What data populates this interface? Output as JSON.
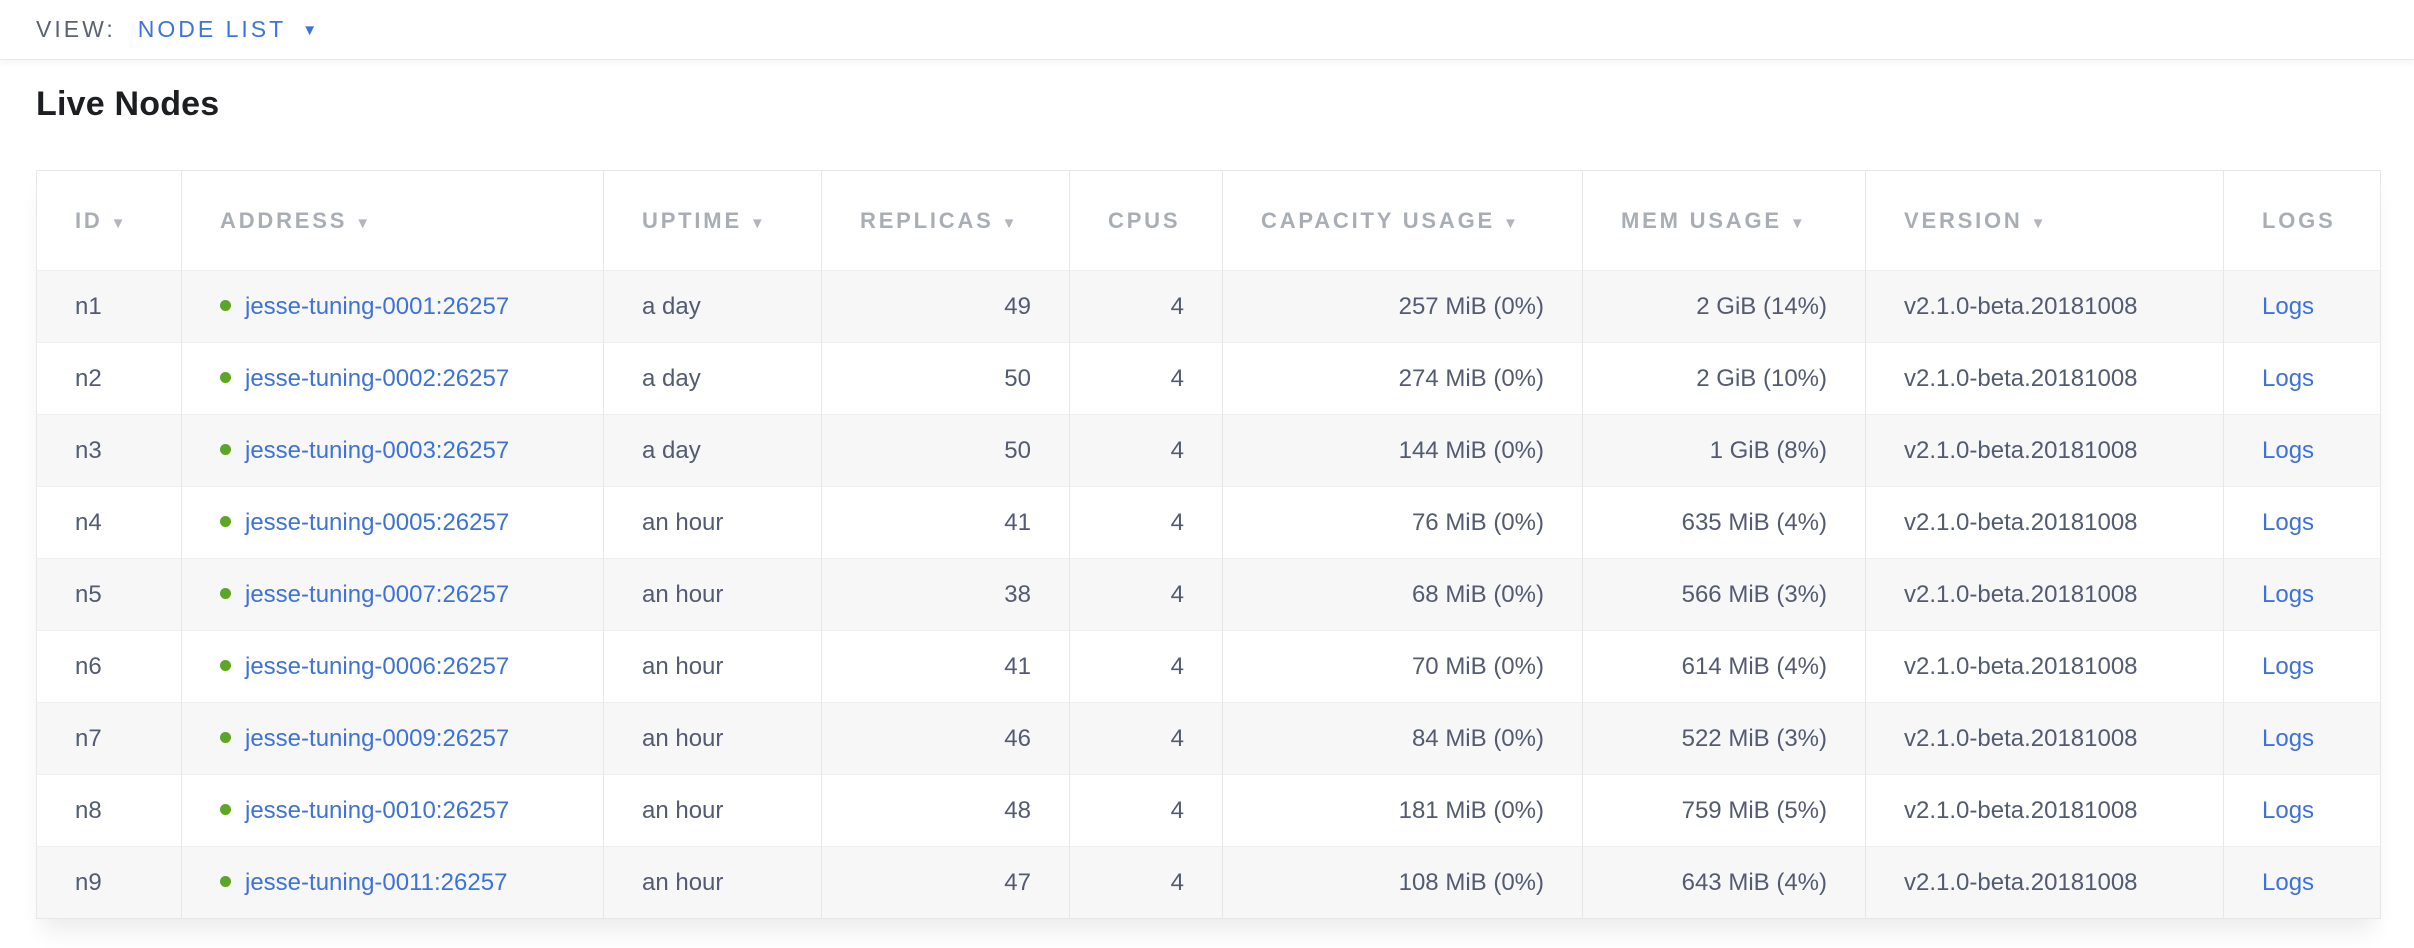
{
  "view_bar": {
    "label": "VIEW:",
    "selected": "NODE LIST",
    "dropdown_icon": "▼"
  },
  "page": {
    "title": "Live Nodes"
  },
  "colors": {
    "accent_blue": "#3d74da",
    "link_blue": "#3d72d9",
    "live_green": "#5ea524",
    "header_gray": "#a9aeb5",
    "cell_text": "#525b70",
    "row_stripe": "#f7f7f8"
  },
  "table": {
    "columns": [
      {
        "key": "id",
        "label": "ID",
        "sort_arrow": "▼"
      },
      {
        "key": "address",
        "label": "ADDRESS",
        "sort_arrow": "▼"
      },
      {
        "key": "uptime",
        "label": "UPTIME",
        "sort_arrow": "▼"
      },
      {
        "key": "replicas",
        "label": "REPLICAS",
        "sort_arrow": "▼"
      },
      {
        "key": "cpus",
        "label": "CPUS"
      },
      {
        "key": "capacity",
        "label": "CAPACITY USAGE",
        "sort_arrow": "▼"
      },
      {
        "key": "mem",
        "label": "MEM USAGE",
        "sort_arrow": "▼"
      },
      {
        "key": "version",
        "label": "VERSION",
        "sort_arrow": "▼"
      },
      {
        "key": "logs",
        "label": "LOGS"
      }
    ],
    "rows": [
      {
        "id": "n1",
        "status_icon": "green-dot",
        "address": "jesse-tuning-0001:26257",
        "uptime": "a day",
        "replicas": "49",
        "cpus": "4",
        "capacity_usage": "257 MiB (0%)",
        "mem_usage": "2 GiB (14%)",
        "version": "v2.1.0-beta.20181008",
        "logs_label": "Logs"
      },
      {
        "id": "n2",
        "status_icon": "green-dot",
        "address": "jesse-tuning-0002:26257",
        "uptime": "a day",
        "replicas": "50",
        "cpus": "4",
        "capacity_usage": "274 MiB (0%)",
        "mem_usage": "2 GiB (10%)",
        "version": "v2.1.0-beta.20181008",
        "logs_label": "Logs"
      },
      {
        "id": "n3",
        "status_icon": "green-dot",
        "address": "jesse-tuning-0003:26257",
        "uptime": "a day",
        "replicas": "50",
        "cpus": "4",
        "capacity_usage": "144 MiB (0%)",
        "mem_usage": "1 GiB (8%)",
        "version": "v2.1.0-beta.20181008",
        "logs_label": "Logs"
      },
      {
        "id": "n4",
        "status_icon": "green-dot",
        "address": "jesse-tuning-0005:26257",
        "uptime": "an hour",
        "replicas": "41",
        "cpus": "4",
        "capacity_usage": "76 MiB (0%)",
        "mem_usage": "635 MiB (4%)",
        "version": "v2.1.0-beta.20181008",
        "logs_label": "Logs"
      },
      {
        "id": "n5",
        "status_icon": "green-dot",
        "address": "jesse-tuning-0007:26257",
        "uptime": "an hour",
        "replicas": "38",
        "cpus": "4",
        "capacity_usage": "68 MiB (0%)",
        "mem_usage": "566 MiB (3%)",
        "version": "v2.1.0-beta.20181008",
        "logs_label": "Logs"
      },
      {
        "id": "n6",
        "status_icon": "green-dot",
        "address": "jesse-tuning-0006:26257",
        "uptime": "an hour",
        "replicas": "41",
        "cpus": "4",
        "capacity_usage": "70 MiB (0%)",
        "mem_usage": "614 MiB (4%)",
        "version": "v2.1.0-beta.20181008",
        "logs_label": "Logs"
      },
      {
        "id": "n7",
        "status_icon": "green-dot",
        "address": "jesse-tuning-0009:26257",
        "uptime": "an hour",
        "replicas": "46",
        "cpus": "4",
        "capacity_usage": "84 MiB (0%)",
        "mem_usage": "522 MiB (3%)",
        "version": "v2.1.0-beta.20181008",
        "logs_label": "Logs"
      },
      {
        "id": "n8",
        "status_icon": "green-dot",
        "address": "jesse-tuning-0010:26257",
        "uptime": "an hour",
        "replicas": "48",
        "cpus": "4",
        "capacity_usage": "181 MiB (0%)",
        "mem_usage": "759 MiB (5%)",
        "version": "v2.1.0-beta.20181008",
        "logs_label": "Logs"
      },
      {
        "id": "n9",
        "status_icon": "green-dot",
        "address": "jesse-tuning-0011:26257",
        "uptime": "an hour",
        "replicas": "47",
        "cpus": "4",
        "capacity_usage": "108 MiB (0%)",
        "mem_usage": "643 MiB (4%)",
        "version": "v2.1.0-beta.20181008",
        "logs_label": "Logs"
      }
    ]
  }
}
